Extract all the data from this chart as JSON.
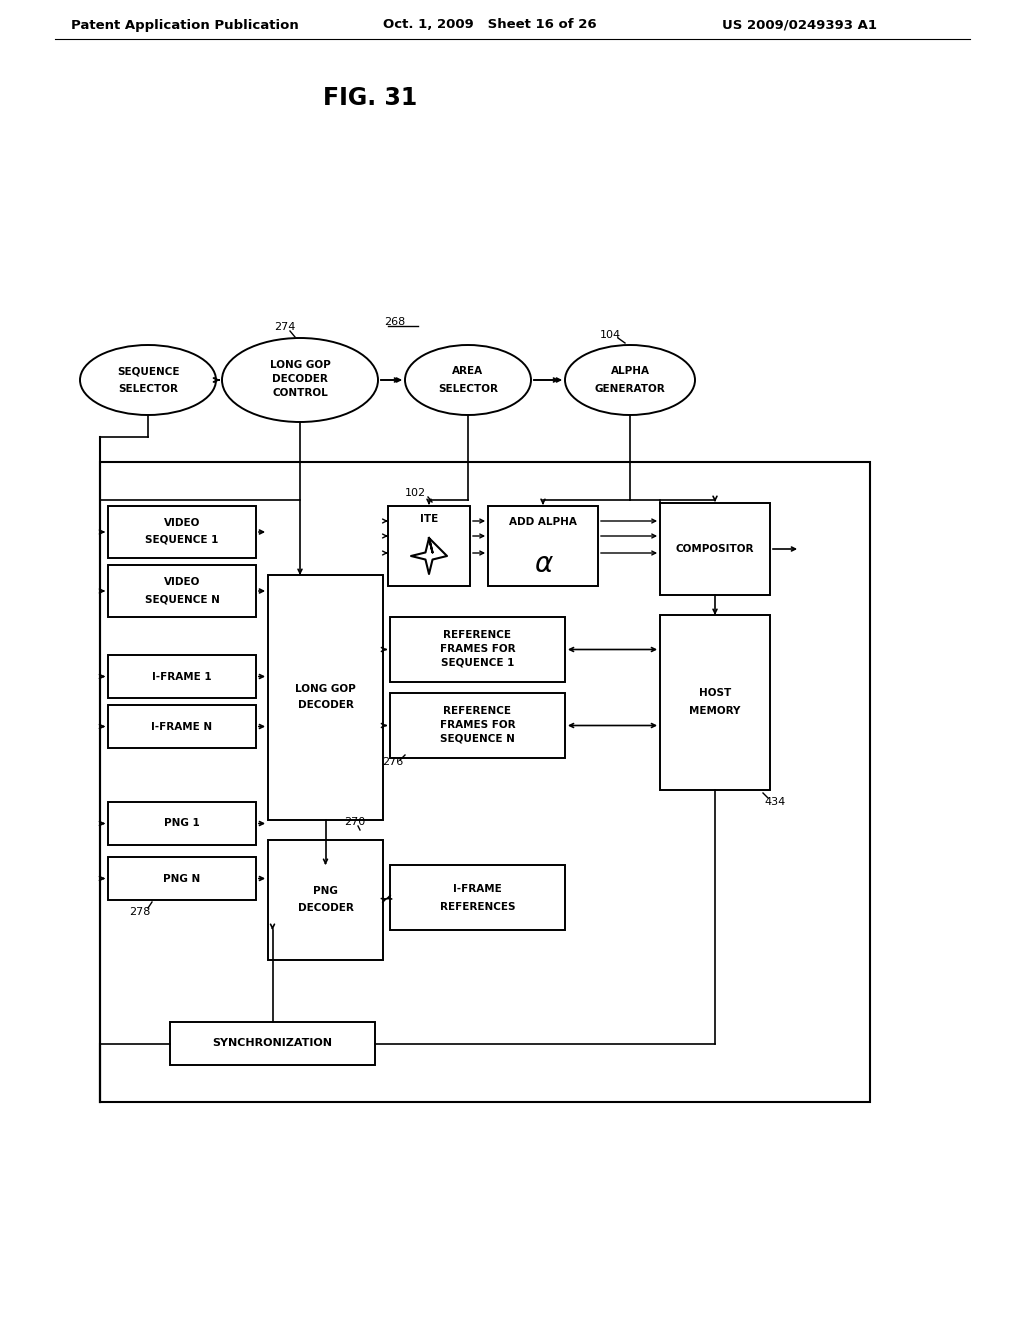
{
  "bg_color": "#ffffff",
  "header_left": "Patent Application Publication",
  "header_mid": "Oct. 1, 2009   Sheet 16 of 26",
  "header_right": "US 2009/0249393 A1",
  "title": "FIG. 31"
}
